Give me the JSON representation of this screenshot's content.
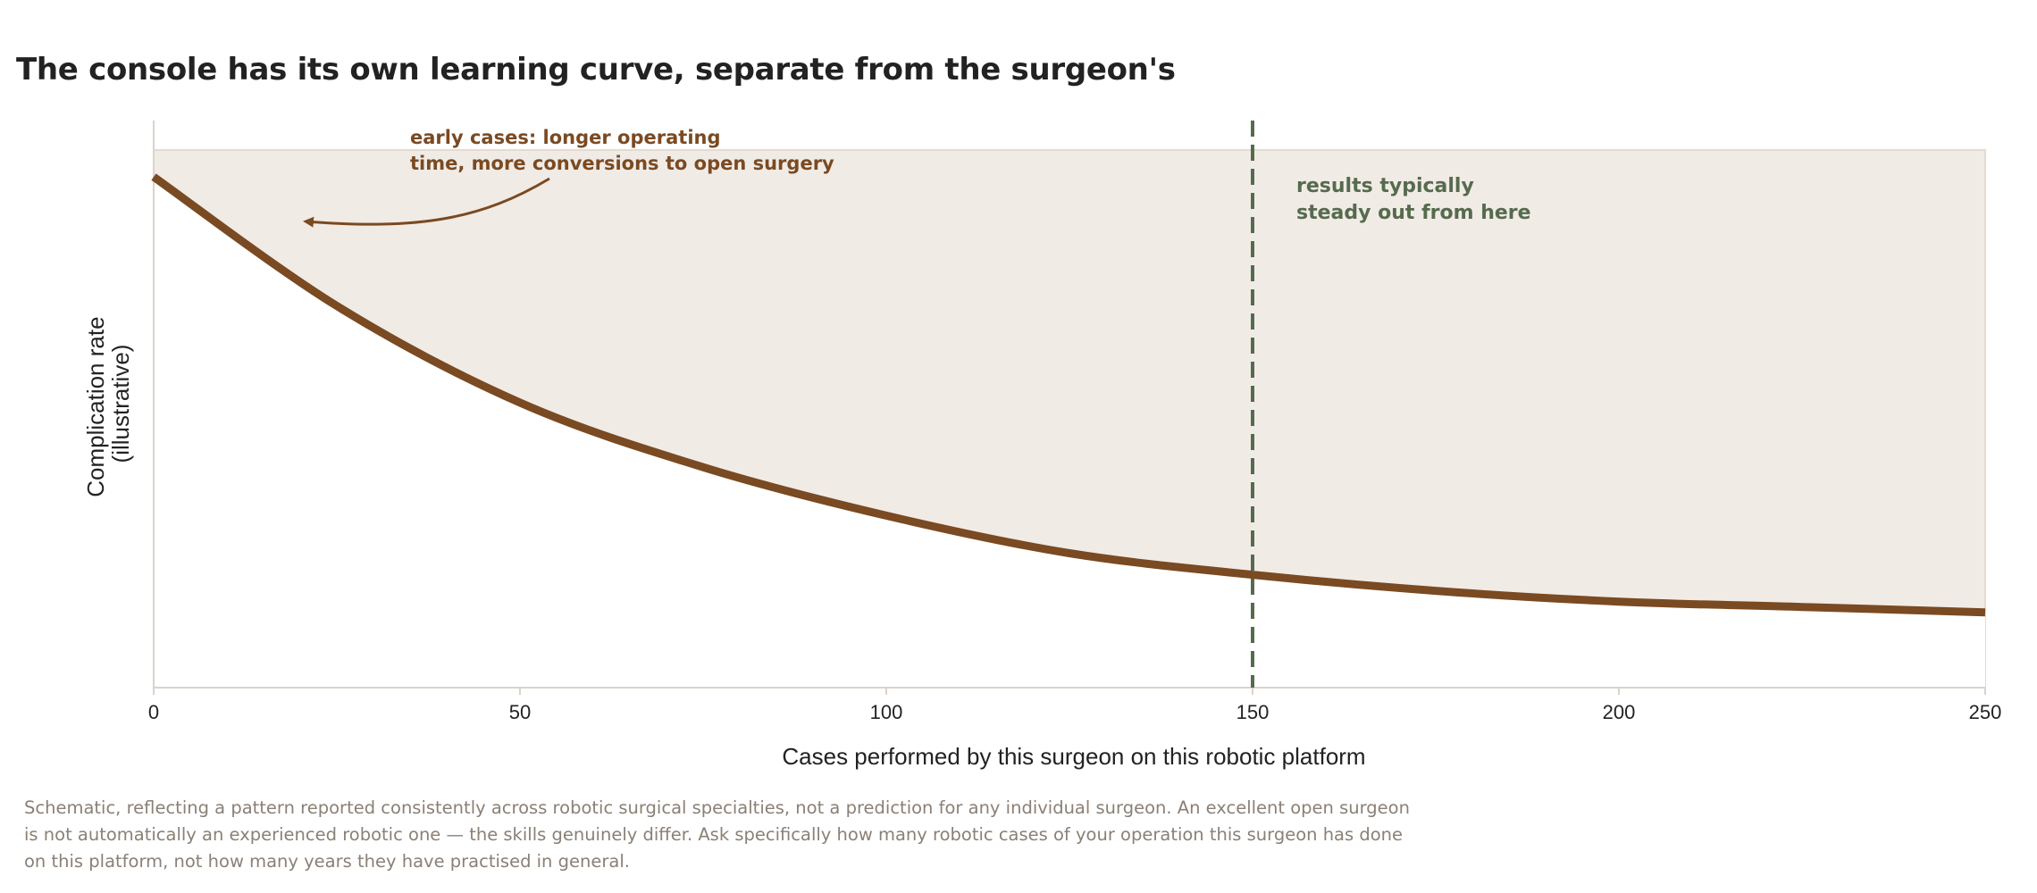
{
  "chart_data": {
    "type": "area",
    "title": "The console has its own learning curve, separate from the surgeon's",
    "xlabel": "Cases performed by this surgeon on this robotic platform",
    "ylabel": [
      "Complication rate",
      "(illustrative)"
    ],
    "xlim": [
      0,
      250
    ],
    "ylim": [
      0,
      1
    ],
    "xticks": [
      0,
      50,
      100,
      150,
      200,
      250
    ],
    "grid": false,
    "series": [
      {
        "x": [
          0,
          25,
          50,
          75,
          100,
          125,
          150,
          175,
          200,
          225,
          250
        ],
        "values": [
          0.95,
          0.71,
          0.53,
          0.41,
          0.32,
          0.25,
          0.21,
          0.18,
          0.16,
          0.15,
          0.14
        ]
      }
    ],
    "reference_line": {
      "x": 150,
      "style": "dashed"
    },
    "annotations": [
      {
        "id": "early",
        "lines": [
          "early cases: longer operating",
          "time, more conversions to open surgery"
        ],
        "points_to_x": 20
      },
      {
        "id": "steady",
        "lines": [
          "results typically",
          "steady out from here"
        ]
      }
    ],
    "colors": {
      "curve": "#7a4a22",
      "band_fill": "#f1ebe6",
      "band_border": "#e3dbd2",
      "reference_line": "#566b4e",
      "axis": "#d9d4ca"
    }
  },
  "footnote": "Schematic, reflecting a pattern reported consistently across robotic surgical specialties, not a prediction for any individual surgeon. An excellent open surgeon is not automatically an experienced robotic one — the skills genuinely differ. Ask specifically how many robotic cases of your operation this surgeon has done on this platform, not how many years they have practised in general."
}
